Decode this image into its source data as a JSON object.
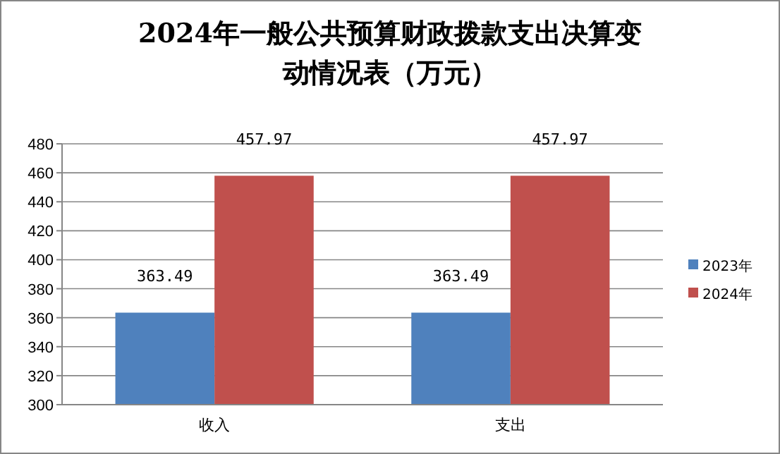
{
  "chart_data": {
    "type": "bar",
    "title": "2024年一般公共预算财政拨款支出决算变动情况表（万元）",
    "categories": [
      "收入",
      "支出"
    ],
    "series": [
      {
        "name": "2023年",
        "color": "#4f81bd",
        "values": [
          363.49,
          363.49
        ]
      },
      {
        "name": "2024年",
        "color": "#c0504d",
        "values": [
          457.97,
          457.97
        ]
      }
    ],
    "ylim": [
      300,
      480
    ],
    "yticks": [
      300,
      320,
      340,
      360,
      380,
      400,
      420,
      440,
      460,
      480
    ],
    "grid": "y",
    "legend": "right",
    "data_labels": true
  }
}
